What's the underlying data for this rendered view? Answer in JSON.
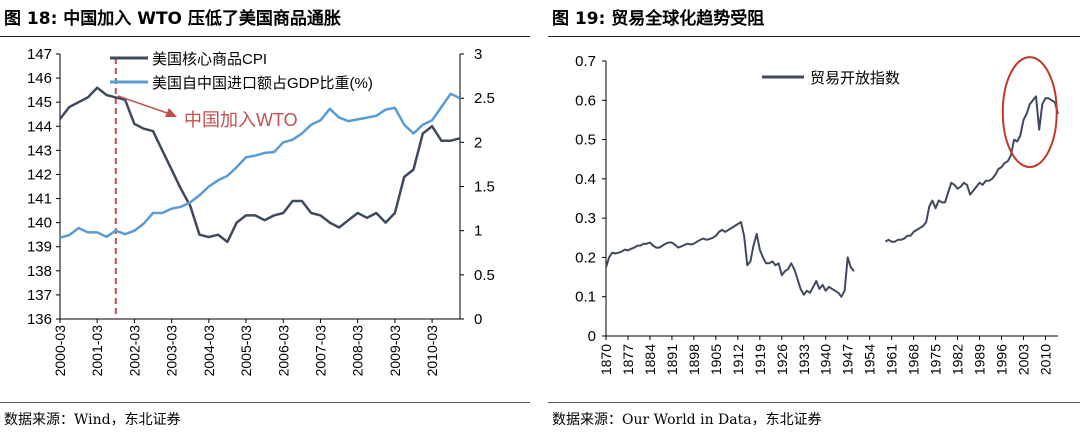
{
  "charts": [
    {
      "title": "图 18: 中国加入 WTO 压低了美国商品通胀",
      "source": "数据来源：Wind，东北证券",
      "chart_data": {
        "type": "line",
        "x_labels": [
          "2000-03",
          "2001-03",
          "2002-03",
          "2003-03",
          "2004-03",
          "2005-03",
          "2006-03",
          "2007-03",
          "2008-03",
          "2009-03",
          "2010-03"
        ],
        "x_start": 2000.17,
        "x_end": 2010.92,
        "ylim_left": [
          136,
          147
        ],
        "yticks_left": [
          "136",
          "137",
          "138",
          "139",
          "140",
          "141",
          "142",
          "143",
          "144",
          "145",
          "146",
          "147"
        ],
        "ylim_right": [
          0,
          3
        ],
        "yticks_right": [
          "0",
          "0.5",
          "1",
          "1.5",
          "2",
          "2.5",
          "3"
        ],
        "legend_position": "top",
        "annotation": "中国加入WTO",
        "annotation_x": 2001.67,
        "series": [
          {
            "name": "美国核心商品CPI",
            "axis": "left",
            "color": "#404a5e",
            "x": [
              2000.17,
              2000.42,
              2000.67,
              2000.92,
              2001.17,
              2001.42,
              2001.67,
              2001.92,
              2002.17,
              2002.42,
              2002.67,
              2002.92,
              2003.17,
              2003.42,
              2003.67,
              2003.92,
              2004.17,
              2004.42,
              2004.67,
              2004.92,
              2005.17,
              2005.42,
              2005.67,
              2005.92,
              2006.17,
              2006.42,
              2006.67,
              2006.92,
              2007.17,
              2007.42,
              2007.67,
              2007.92,
              2008.17,
              2008.42,
              2008.67,
              2008.92,
              2009.17,
              2009.42,
              2009.67,
              2009.92,
              2010.17,
              2010.42,
              2010.67,
              2010.92
            ],
            "values": [
              144.3,
              144.8,
              145.0,
              145.2,
              145.6,
              145.3,
              145.2,
              145.1,
              144.1,
              143.9,
              143.8,
              143.0,
              142.2,
              141.4,
              140.7,
              139.5,
              139.4,
              139.5,
              139.2,
              140.0,
              140.3,
              140.3,
              140.1,
              140.3,
              140.4,
              140.9,
              140.9,
              140.4,
              140.3,
              140.0,
              139.8,
              140.1,
              140.4,
              140.2,
              140.4,
              140.0,
              140.4,
              141.9,
              142.2,
              143.7,
              144.0,
              143.4,
              143.4,
              143.5
            ]
          },
          {
            "name": "美国自中国进口额占GDP比重(%)",
            "axis": "right",
            "color": "#5b9bd5",
            "x": [
              2000.17,
              2000.42,
              2000.67,
              2000.92,
              2001.17,
              2001.42,
              2001.67,
              2001.92,
              2002.17,
              2002.42,
              2002.67,
              2002.92,
              2003.17,
              2003.42,
              2003.67,
              2003.92,
              2004.17,
              2004.42,
              2004.67,
              2004.92,
              2005.17,
              2005.42,
              2005.67,
              2005.92,
              2006.17,
              2006.42,
              2006.67,
              2006.92,
              2007.17,
              2007.42,
              2007.67,
              2007.92,
              2008.17,
              2008.42,
              2008.67,
              2008.92,
              2009.17,
              2009.42,
              2009.67,
              2009.92,
              2010.17,
              2010.42,
              2010.67,
              2010.92
            ],
            "values": [
              0.92,
              0.95,
              1.03,
              0.98,
              0.98,
              0.93,
              1.0,
              0.96,
              1.0,
              1.08,
              1.2,
              1.2,
              1.25,
              1.27,
              1.32,
              1.4,
              1.5,
              1.57,
              1.62,
              1.72,
              1.83,
              1.85,
              1.88,
              1.89,
              2.0,
              2.03,
              2.1,
              2.2,
              2.25,
              2.38,
              2.28,
              2.24,
              2.26,
              2.28,
              2.3,
              2.37,
              2.39,
              2.2,
              2.1,
              2.2,
              2.25,
              2.4,
              2.55,
              2.5
            ]
          }
        ]
      }
    },
    {
      "title": "图 19: 贸易全球化趋势受阻",
      "source": "数据来源：Our World in Data，东北证券",
      "chart_data": {
        "type": "line",
        "x_labels": [
          "1870",
          "1877",
          "1884",
          "1891",
          "1898",
          "1905",
          "1912",
          "1919",
          "1926",
          "1933",
          "1940",
          "1947",
          "1954",
          "1961",
          "1968",
          "1975",
          "1982",
          "1989",
          "1996",
          "2003",
          "2010"
        ],
        "x_start": 1870,
        "x_end": 2014,
        "ylim": [
          0,
          0.7
        ],
        "yticks": [
          "0",
          "0.1",
          "0.2",
          "0.3",
          "0.4",
          "0.5",
          "0.6",
          "0.7"
        ],
        "legend_position": "top",
        "highlight_ellipse": {
          "x_center": 2005,
          "y_center": 0.57
        },
        "series": [
          {
            "name": "贸易开放指数",
            "color": "#404a5e",
            "segments": [
              {
                "x": [
                  1870,
                  1871,
                  1872,
                  1873,
                  1874,
                  1875,
                  1876,
                  1877,
                  1878,
                  1879,
                  1880,
                  1881,
                  1882,
                  1883,
                  1884,
                  1885,
                  1886,
                  1887,
                  1888,
                  1889,
                  1890,
                  1891,
                  1892,
                  1893,
                  1894,
                  1895,
                  1896,
                  1897,
                  1898,
                  1899,
                  1900,
                  1901,
                  1902,
                  1903,
                  1904,
                  1905,
                  1906,
                  1907,
                  1908,
                  1909,
                  1910,
                  1911,
                  1912,
                  1913,
                  1914,
                  1915,
                  1916,
                  1917,
                  1918,
                  1919,
                  1920,
                  1921,
                  1922,
                  1923,
                  1924,
                  1925,
                  1926,
                  1927,
                  1928,
                  1929,
                  1930,
                  1931,
                  1932,
                  1933,
                  1934,
                  1935,
                  1936,
                  1937,
                  1938,
                  1939,
                  1940,
                  1941,
                  1942,
                  1943,
                  1944,
                  1945,
                  1946,
                  1947,
                  1948,
                  1949
                ],
                "values": [
                  0.175,
                  0.2,
                  0.212,
                  0.21,
                  0.212,
                  0.215,
                  0.22,
                  0.218,
                  0.222,
                  0.225,
                  0.23,
                  0.23,
                  0.235,
                  0.235,
                  0.238,
                  0.23,
                  0.225,
                  0.225,
                  0.23,
                  0.235,
                  0.238,
                  0.238,
                  0.232,
                  0.225,
                  0.228,
                  0.232,
                  0.235,
                  0.233,
                  0.235,
                  0.24,
                  0.245,
                  0.248,
                  0.245,
                  0.247,
                  0.25,
                  0.255,
                  0.265,
                  0.27,
                  0.265,
                  0.27,
                  0.275,
                  0.28,
                  0.285,
                  0.29,
                  0.255,
                  0.18,
                  0.19,
                  0.23,
                  0.26,
                  0.22,
                  0.2,
                  0.185,
                  0.185,
                  0.19,
                  0.18,
                  0.185,
                  0.155,
                  0.165,
                  0.17,
                  0.185,
                  0.17,
                  0.145,
                  0.12,
                  0.105,
                  0.115,
                  0.11,
                  0.125,
                  0.14,
                  0.12,
                  0.13,
                  0.115,
                  0.125,
                  0.12,
                  0.115,
                  0.11,
                  0.1,
                  0.115,
                  0.2,
                  0.175,
                  0.165
                ]
              },
              {
                "x": [
                  1959,
                  1960,
                  1961,
                  1962,
                  1963,
                  1964,
                  1965,
                  1966,
                  1967,
                  1968,
                  1969,
                  1970,
                  1971,
                  1972,
                  1973,
                  1974,
                  1975,
                  1976,
                  1977,
                  1978,
                  1979,
                  1980,
                  1981,
                  1982,
                  1983,
                  1984,
                  1985,
                  1986,
                  1987,
                  1988,
                  1989,
                  1990,
                  1991,
                  1992,
                  1993,
                  1994,
                  1995,
                  1996,
                  1997,
                  1998,
                  1999,
                  2000,
                  2001,
                  2002,
                  2003,
                  2004,
                  2005,
                  2006,
                  2007,
                  2008,
                  2009,
                  2010,
                  2011,
                  2012,
                  2013,
                  2014
                ],
                "values": [
                  0.24,
                  0.245,
                  0.24,
                  0.24,
                  0.245,
                  0.245,
                  0.248,
                  0.255,
                  0.255,
                  0.265,
                  0.27,
                  0.275,
                  0.28,
                  0.29,
                  0.33,
                  0.345,
                  0.325,
                  0.345,
                  0.34,
                  0.34,
                  0.365,
                  0.39,
                  0.385,
                  0.375,
                  0.38,
                  0.39,
                  0.385,
                  0.36,
                  0.37,
                  0.38,
                  0.39,
                  0.385,
                  0.395,
                  0.395,
                  0.4,
                  0.41,
                  0.425,
                  0.43,
                  0.44,
                  0.445,
                  0.46,
                  0.5,
                  0.495,
                  0.51,
                  0.55,
                  0.565,
                  0.59,
                  0.6,
                  0.61,
                  0.525,
                  0.59,
                  0.605,
                  0.605,
                  0.6,
                  0.595,
                  0.565
                ]
              }
            ]
          }
        ]
      }
    }
  ]
}
